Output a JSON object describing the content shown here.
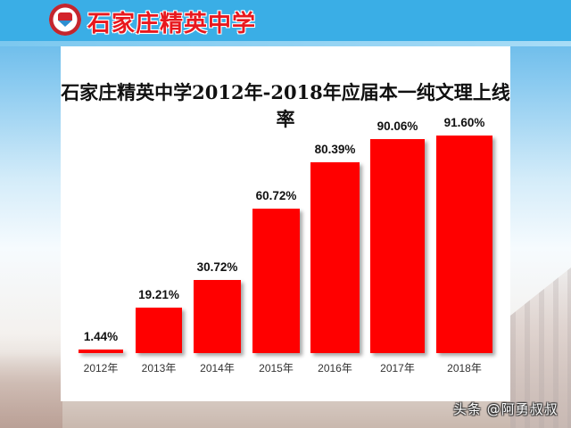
{
  "header": {
    "school_name": "石家庄精英中学",
    "logo_icon": "school-emblem-icon"
  },
  "watermark": "头条 @阿勇叔叔",
  "colors": {
    "bar": "#ff0000",
    "header": "#3aaee6",
    "school_name": "#e8181e"
  },
  "chart_data": {
    "type": "bar",
    "title": "石家庄精英中学2012年-2018年应届本一纯文理上线率",
    "xlabel": "",
    "ylabel": "",
    "categories": [
      "2012年",
      "2013年",
      "2014年",
      "2015年",
      "2016年",
      "2017年",
      "2018年"
    ],
    "values": [
      1.44,
      19.21,
      30.72,
      60.72,
      80.39,
      90.06,
      91.6
    ],
    "value_labels": [
      "1.44%",
      "19.21%",
      "30.72%",
      "60.72%",
      "80.39%",
      "90.06%",
      "91.60%"
    ],
    "unit": "%",
    "grid": false,
    "legend": null,
    "ylim": [
      0,
      100
    ]
  }
}
